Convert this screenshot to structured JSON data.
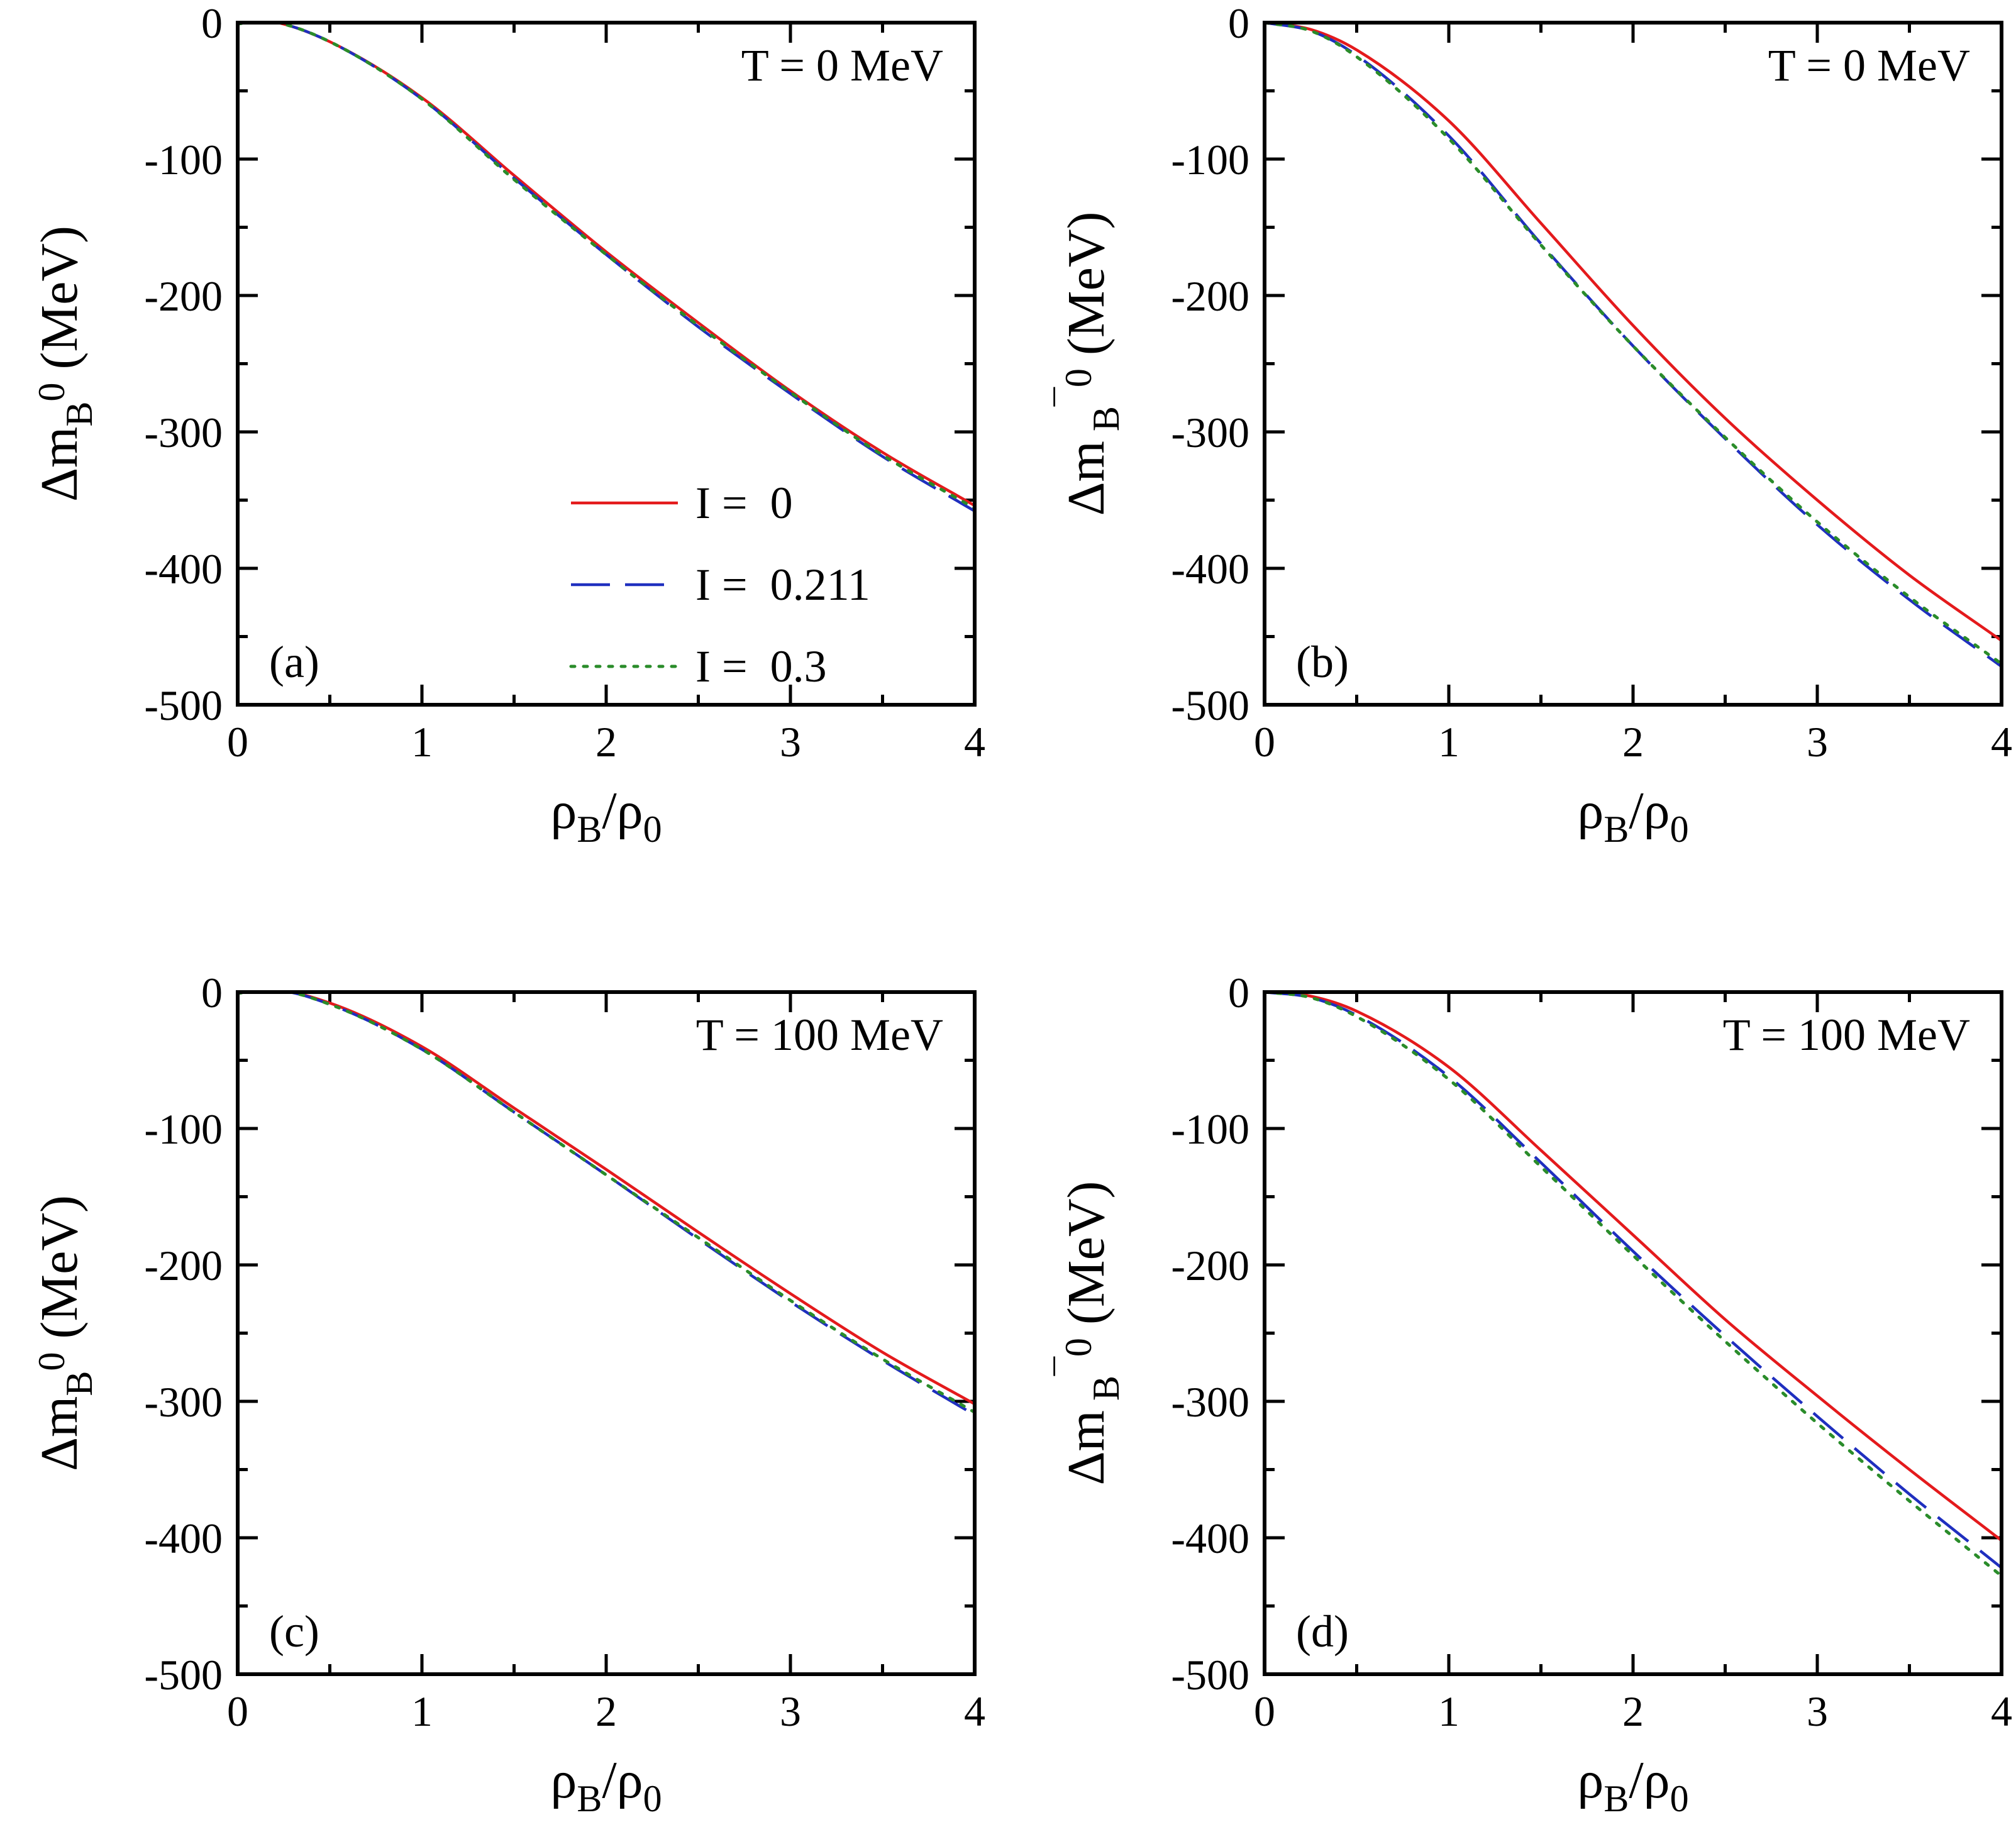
{
  "chart_data": [
    {
      "type": "line",
      "panel_label": "(a)",
      "annotation": "T = 0 MeV",
      "xlabel": "ρB/ρ0",
      "xlabel_main": "ρ",
      "xlabel_sub": "B",
      "xlabel_denom": "/ρ",
      "xlabel_denom_sub": "0",
      "ylabel": "ΔmB0 (MeV)",
      "ylabel_delta": "Δm",
      "ylabel_sub": "B",
      "ylabel_bar": "",
      "ylabel_sup": "0",
      "ylabel_unit": " (MeV)",
      "xlim": [
        0,
        4
      ],
      "ylim": [
        -500,
        0
      ],
      "xticks": [
        "0",
        "1",
        "2",
        "3",
        "4"
      ],
      "yticks": [
        "0",
        "-100",
        "-200",
        "-300",
        "-400",
        "-500"
      ],
      "legend_position": "lower-right",
      "series": [
        {
          "name": "I =  0",
          "color": "#e41a1c",
          "style": "solid",
          "x": [
            0,
            0.1,
            0.2,
            0.5,
            1.0,
            1.5,
            2.0,
            2.5,
            3.0,
            3.5,
            4.0
          ],
          "y": [
            -1,
            1,
            0.5,
            -14,
            -55,
            -112,
            -168,
            -220,
            -270,
            -315,
            -354
          ]
        },
        {
          "name": "I =  0.211",
          "color": "#1f2fbf",
          "style": "dashed",
          "x": [
            0,
            0.1,
            0.2,
            0.5,
            1.0,
            1.5,
            2.0,
            2.5,
            3.0,
            3.5,
            4.0
          ],
          "y": [
            -1,
            1,
            0.5,
            -14,
            -56,
            -114,
            -170,
            -223,
            -272,
            -318,
            -358
          ]
        },
        {
          "name": "I =  0.3",
          "color": "#2a8c2a",
          "style": "dotted",
          "x": [
            0,
            0.1,
            0.2,
            0.5,
            1.0,
            1.5,
            2.0,
            2.5,
            3.0,
            3.5,
            4.0
          ],
          "y": [
            -1,
            1,
            0.5,
            -14,
            -56,
            -115,
            -170,
            -222,
            -271,
            -317,
            -356
          ]
        }
      ]
    },
    {
      "type": "line",
      "panel_label": "(b)",
      "annotation": "T = 0 MeV",
      "xlabel": "ρB/ρ0",
      "xlabel_main": "ρ",
      "xlabel_sub": "B",
      "xlabel_denom": "/ρ",
      "xlabel_denom_sub": "0",
      "ylabel": "Δm B̄0 (MeV)",
      "ylabel_delta": "Δm",
      "ylabel_sub": "B",
      "ylabel_bar": "¯",
      "ylabel_sup": "0",
      "ylabel_unit": " (MeV)",
      "xlim": [
        0,
        4
      ],
      "ylim": [
        -500,
        0
      ],
      "xticks": [
        "0",
        "1",
        "2",
        "3",
        "4"
      ],
      "yticks": [
        "0",
        "-100",
        "-200",
        "-300",
        "-400",
        "-500"
      ],
      "legend_position": "",
      "series": [
        {
          "name": "I =  0",
          "color": "#e41a1c",
          "style": "solid",
          "x": [
            0,
            0.25,
            0.5,
            1.0,
            1.5,
            2.0,
            2.5,
            3.0,
            3.5,
            4.0
          ],
          "y": [
            0,
            -5,
            -20,
            -72,
            -147,
            -222,
            -290,
            -350,
            -405,
            -453
          ]
        },
        {
          "name": "I =  0.211",
          "color": "#1f2fbf",
          "style": "dashed",
          "x": [
            0,
            0.25,
            0.5,
            1.0,
            1.5,
            2.0,
            2.5,
            3.0,
            3.5,
            4.0
          ],
          "y": [
            0,
            -6,
            -24,
            -83,
            -162,
            -237,
            -305,
            -368,
            -423,
            -472
          ]
        },
        {
          "name": "I =  0.3",
          "color": "#2a8c2a",
          "style": "dotted",
          "x": [
            0,
            0.25,
            0.5,
            1.0,
            1.5,
            2.0,
            2.5,
            3.0,
            3.5,
            4.0
          ],
          "y": [
            0,
            -6,
            -25,
            -85,
            -163,
            -237,
            -304,
            -366,
            -421,
            -470
          ]
        }
      ]
    },
    {
      "type": "line",
      "panel_label": "(c)",
      "annotation": "T = 100 MeV",
      "xlabel": "ρB/ρ0",
      "xlabel_main": "ρ",
      "xlabel_sub": "B",
      "xlabel_denom": "/ρ",
      "xlabel_denom_sub": "0",
      "ylabel": "ΔmB0 (MeV)",
      "ylabel_delta": "Δm",
      "ylabel_sub": "B",
      "ylabel_bar": "",
      "ylabel_sup": "0",
      "ylabel_unit": " (MeV)",
      "xlim": [
        0,
        4
      ],
      "ylim": [
        -500,
        0
      ],
      "xticks": [
        "0",
        "1",
        "2",
        "3",
        "4"
      ],
      "yticks": [
        "0",
        "-100",
        "-200",
        "-300",
        "-400",
        "-500"
      ],
      "legend_position": "",
      "series": [
        {
          "name": "I =  0",
          "color": "#e41a1c",
          "style": "solid",
          "x": [
            0,
            0.1,
            0.2,
            0.5,
            1.0,
            1.5,
            2.0,
            2.5,
            3.0,
            3.5,
            4.0
          ],
          "y": [
            -1,
            1,
            1,
            -8,
            -40,
            -85,
            -130,
            -176,
            -221,
            -264,
            -302
          ]
        },
        {
          "name": "I =  0.211",
          "color": "#1f2fbf",
          "style": "dashed",
          "x": [
            0,
            0.1,
            0.2,
            0.5,
            1.0,
            1.5,
            2.0,
            2.5,
            3.0,
            3.5,
            4.0
          ],
          "y": [
            -1,
            1,
            1,
            -9,
            -42,
            -88,
            -134,
            -181,
            -227,
            -270,
            -310
          ]
        },
        {
          "name": "I =  0.3",
          "color": "#2a8c2a",
          "style": "dotted",
          "x": [
            0,
            0.1,
            0.2,
            0.5,
            1.0,
            1.5,
            2.0,
            2.5,
            3.0,
            3.5,
            4.0
          ],
          "y": [
            -1,
            1,
            1,
            -9,
            -42,
            -88,
            -134,
            -180,
            -226,
            -269,
            -308
          ]
        }
      ]
    },
    {
      "type": "line",
      "panel_label": "(d)",
      "annotation": "T = 100 MeV",
      "xlabel": "ρB/ρ0",
      "xlabel_main": "ρ",
      "xlabel_sub": "B",
      "xlabel_denom": "/ρ",
      "xlabel_denom_sub": "0",
      "ylabel": "Δm B̄0 (MeV)",
      "ylabel_delta": "Δm",
      "ylabel_sub": "B",
      "ylabel_bar": "¯",
      "ylabel_sup": "0",
      "ylabel_unit": " (MeV)",
      "xlim": [
        0,
        4
      ],
      "ylim": [
        -500,
        0
      ],
      "xticks": [
        "0",
        "1",
        "2",
        "3",
        "4"
      ],
      "yticks": [
        "0",
        "-100",
        "-200",
        "-300",
        "-400",
        "-500"
      ],
      "legend_position": "",
      "series": [
        {
          "name": "I =  0",
          "color": "#e41a1c",
          "style": "solid",
          "x": [
            0,
            0.25,
            0.5,
            1.0,
            1.5,
            2.0,
            2.5,
            3.0,
            3.5,
            4.0
          ],
          "y": [
            0,
            -3,
            -14,
            -55,
            -116,
            -178,
            -240,
            -296,
            -350,
            -402
          ]
        },
        {
          "name": "I =  0.211",
          "color": "#1f2fbf",
          "style": "dashed",
          "x": [
            0,
            0.25,
            0.5,
            1.0,
            1.5,
            2.0,
            2.5,
            3.0,
            3.5,
            4.0
          ],
          "y": [
            0,
            -4,
            -17,
            -62,
            -125,
            -190,
            -252,
            -311,
            -368,
            -422
          ]
        },
        {
          "name": "I =  0.3",
          "color": "#2a8c2a",
          "style": "dotted",
          "x": [
            0,
            0.25,
            0.5,
            1.0,
            1.5,
            2.0,
            2.5,
            3.0,
            3.5,
            4.0
          ],
          "y": [
            0,
            -4,
            -18,
            -64,
            -128,
            -193,
            -256,
            -316,
            -373,
            -428
          ]
        }
      ]
    }
  ]
}
